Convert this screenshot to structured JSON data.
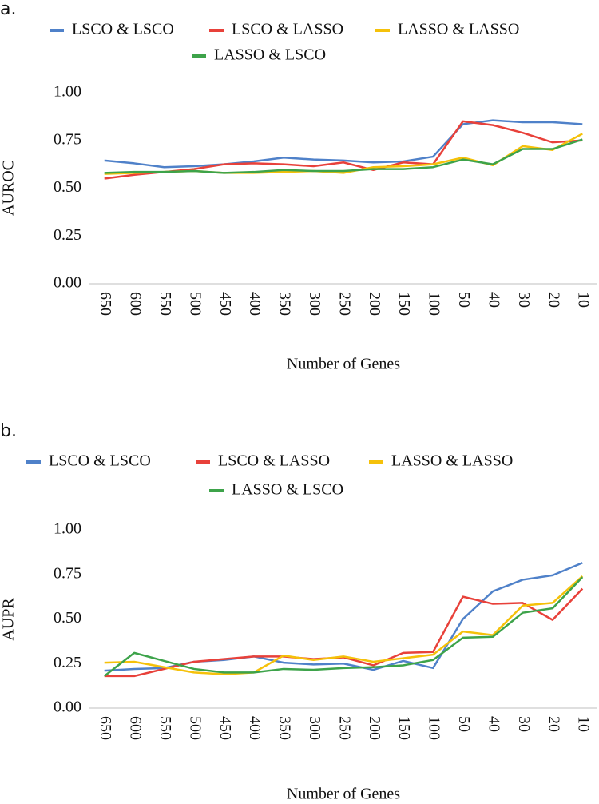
{
  "chart_data": [
    {
      "type": "line",
      "panel_label": "a.",
      "y_label": "AUROC",
      "x_label": "Number of Genes",
      "categories": [
        "650",
        "600",
        "550",
        "500",
        "450",
        "400",
        "350",
        "300",
        "250",
        "200",
        "150",
        "100",
        "50",
        "40",
        "30",
        "20",
        "10"
      ],
      "ylim": [
        0,
        1
      ],
      "yticks": [
        {
          "value": 0,
          "label": "0.00"
        },
        {
          "value": 0.25,
          "label": "0.25"
        },
        {
          "value": 0.5,
          "label": "0.50"
        },
        {
          "value": 0.75,
          "label": "0.75"
        },
        {
          "value": 1,
          "label": "1.00"
        }
      ],
      "grid": false,
      "series": [
        {
          "name": "LSCO & LSCO",
          "color": "#4f81c9",
          "values": [
            0.645,
            0.63,
            0.61,
            0.615,
            0.625,
            0.64,
            0.66,
            0.65,
            0.645,
            0.635,
            0.64,
            0.665,
            0.835,
            0.855,
            0.845,
            0.845,
            0.835
          ]
        },
        {
          "name": "LSCO & LASSO",
          "color": "#e8413a",
          "values": [
            0.55,
            0.57,
            0.585,
            0.6,
            0.625,
            0.63,
            0.625,
            0.615,
            0.635,
            0.595,
            0.635,
            0.625,
            0.85,
            0.83,
            0.79,
            0.74,
            0.75
          ]
        },
        {
          "name": "LASSO & LASSO",
          "color": "#f5c10a",
          "values": [
            0.575,
            0.58,
            0.585,
            0.59,
            0.58,
            0.58,
            0.585,
            0.59,
            0.58,
            0.61,
            0.615,
            0.625,
            0.66,
            0.62,
            0.72,
            0.7,
            0.785
          ]
        },
        {
          "name": "LASSO & LSCO",
          "color": "#3da34a",
          "values": [
            0.58,
            0.585,
            0.585,
            0.59,
            0.58,
            0.585,
            0.595,
            0.59,
            0.59,
            0.6,
            0.6,
            0.61,
            0.65,
            0.625,
            0.705,
            0.705,
            0.755
          ]
        }
      ]
    },
    {
      "type": "line",
      "panel_label": "b.",
      "y_label": "AUPR",
      "x_label": "Number of Genes",
      "categories": [
        "650",
        "600",
        "550",
        "500",
        "450",
        "400",
        "350",
        "300",
        "250",
        "200",
        "150",
        "100",
        "50",
        "40",
        "30",
        "20",
        "10"
      ],
      "ylim": [
        0,
        1
      ],
      "yticks": [
        {
          "value": 0,
          "label": "0.00"
        },
        {
          "value": 0.25,
          "label": "0.25"
        },
        {
          "value": 0.5,
          "label": "0.50"
        },
        {
          "value": 0.75,
          "label": "0.75"
        },
        {
          "value": 1,
          "label": "1.00"
        }
      ],
      "grid": false,
      "series": [
        {
          "name": "LSCO & LSCO",
          "color": "#4f81c9",
          "values": [
            0.21,
            0.22,
            0.225,
            0.26,
            0.27,
            0.29,
            0.255,
            0.245,
            0.25,
            0.215,
            0.265,
            0.225,
            0.5,
            0.655,
            0.72,
            0.745,
            0.815
          ]
        },
        {
          "name": "LSCO & LASSO",
          "color": "#e8413a",
          "values": [
            0.18,
            0.18,
            0.22,
            0.26,
            0.275,
            0.29,
            0.29,
            0.275,
            0.285,
            0.24,
            0.31,
            0.315,
            0.625,
            0.585,
            0.59,
            0.495,
            0.67
          ]
        },
        {
          "name": "LASSO & LASSO",
          "color": "#f5c10a",
          "values": [
            0.255,
            0.26,
            0.23,
            0.2,
            0.19,
            0.2,
            0.295,
            0.27,
            0.29,
            0.26,
            0.28,
            0.3,
            0.43,
            0.41,
            0.575,
            0.59,
            0.74
          ]
        },
        {
          "name": "LASSO & LSCO",
          "color": "#3da34a",
          "values": [
            0.18,
            0.31,
            0.265,
            0.22,
            0.2,
            0.2,
            0.22,
            0.215,
            0.225,
            0.23,
            0.24,
            0.27,
            0.395,
            0.4,
            0.535,
            0.56,
            0.735
          ]
        }
      ]
    }
  ]
}
